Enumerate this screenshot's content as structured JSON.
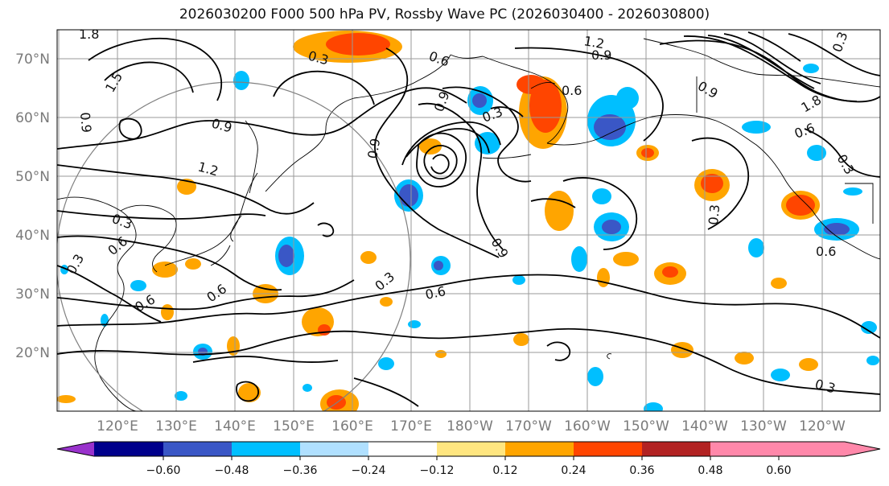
{
  "title": "2026030200 F000 500 hPa PV, Rossby Wave PC (2026030400 - 2026030800)",
  "latitude_labels": [
    "70°N",
    "60°N",
    "50°N",
    "40°N",
    "30°N",
    "20°N"
  ],
  "longitude_labels": [
    "120°E",
    "130°E",
    "140°E",
    "150°E",
    "160°E",
    "170°E",
    "180°W",
    "170°W",
    "160°W",
    "150°W",
    "140°W",
    "130°W",
    "120°W"
  ],
  "colorbar": {
    "tick_labels": [
      "−0.60",
      "−0.48",
      "−0.36",
      "−0.24",
      "−0.12",
      "0.12",
      "0.24",
      "0.36",
      "0.48",
      "0.60"
    ],
    "colors": [
      "#9932cc",
      "#00008b",
      "#3a57c6",
      "#00bfff",
      "#b0e0ff",
      "#ffffff",
      "#ffe680",
      "#ffa500",
      "#ff4500",
      "#b22222",
      "#ff88aa"
    ]
  },
  "contour_labels": [
    "1.8",
    "1.5",
    "0.9",
    "0.9",
    "1.2",
    "0.3",
    "0.6",
    "0.3",
    "0.6",
    "0.6",
    "0.9",
    "0.3",
    "0.9",
    "0.6",
    "0.3",
    "0.6",
    "0.9",
    "0.6",
    "1.2",
    "0.9",
    "0.9",
    "1.8",
    "0.6",
    "0.3",
    "0.3",
    "0.6",
    "0.3",
    "0.3",
    "0.3"
  ],
  "colors": {
    "grid": "#9a9a9a",
    "contour": "#000000",
    "coast": "#000000",
    "circle": "#808080"
  }
}
